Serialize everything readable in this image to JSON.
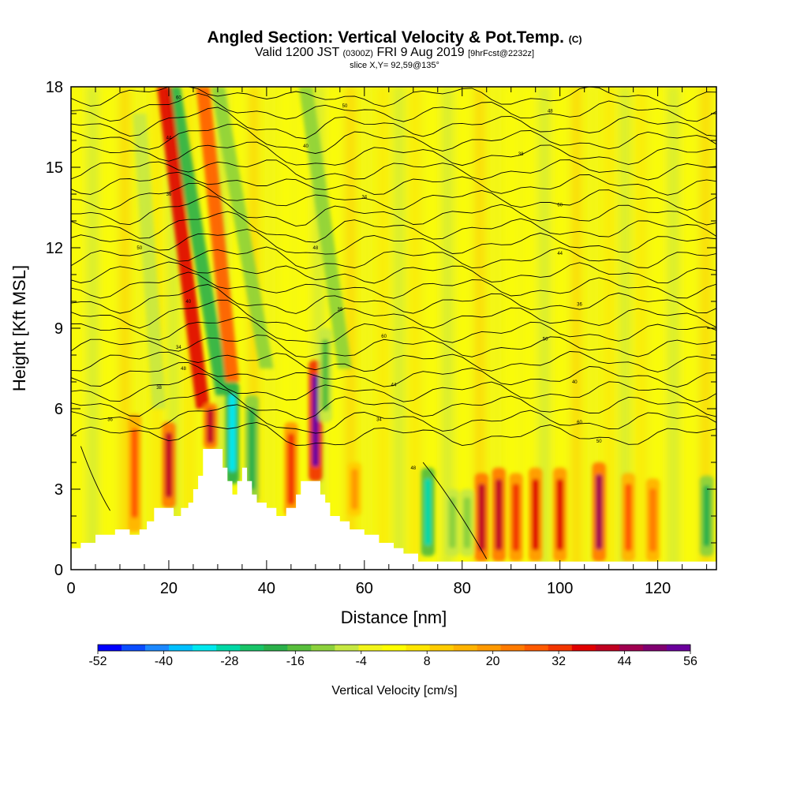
{
  "header": {
    "title_main": "Angled Section: Vertical Velocity & Pot.Temp.",
    "title_unit": "(C)",
    "valid_a": "Valid 1200 JST",
    "valid_b": "(0300Z)",
    "valid_c": "FRI 9 Aug 2019",
    "valid_d": "[9hrFcst@2232z]",
    "slice": "slice X,Y= 92,59@135°"
  },
  "chart_data": {
    "type": "heatmap",
    "title": "Angled Section: Vertical Velocity & Pot.Temp. (C)",
    "xlabel": "Distance [nm]",
    "ylabel": "Height [Kft MSL]",
    "xlim": [
      0,
      132
    ],
    "ylim": [
      0,
      18
    ],
    "x_ticks": [
      "0",
      "20",
      "40",
      "60",
      "80",
      "100",
      "120"
    ],
    "y_ticks": [
      "0",
      "3",
      "6",
      "9",
      "12",
      "15",
      "18"
    ],
    "colorbar": {
      "label": "Vertical Velocity [cm/s]",
      "tick_labels": [
        "-52",
        "-40",
        "-28",
        "-16",
        "-4",
        "8",
        "20",
        "32",
        "44",
        "56"
      ],
      "colors": [
        "#0000ff",
        "#0a4cff",
        "#1c88ff",
        "#00c0ff",
        "#00e8ee",
        "#00d8a6",
        "#18c468",
        "#2ab04a",
        "#58be3c",
        "#8cd13c",
        "#c6e842",
        "#f2f51a",
        "#ffff00",
        "#ffe600",
        "#ffcc00",
        "#ffb300",
        "#ff9900",
        "#ff7b00",
        "#ff5a00",
        "#f23600",
        "#e00000",
        "#c00020",
        "#a00050",
        "#800070",
        "#6a009c"
      ]
    },
    "updrafts": [
      {
        "x": 13,
        "z0": 1.4,
        "z1": 5.8,
        "w": 28
      },
      {
        "x": 20,
        "z0": 2.3,
        "z1": 5.5,
        "w": 40
      },
      {
        "x": 28.5,
        "z0": 4.5,
        "z1": 6.2,
        "w": 40
      },
      {
        "x": 45,
        "z0": 2.0,
        "z1": 5.5,
        "w": 32
      },
      {
        "x": 50,
        "z0": 3.3,
        "z1": 7.8,
        "w": 56
      },
      {
        "x": 58,
        "z0": 2.0,
        "z1": 4.0,
        "w": 18
      },
      {
        "x": 84,
        "z0": 0.3,
        "z1": 3.6,
        "w": 40
      },
      {
        "x": 87.5,
        "z0": 0.3,
        "z1": 3.8,
        "w": 40
      },
      {
        "x": 91,
        "z0": 0.3,
        "z1": 3.6,
        "w": 32
      },
      {
        "x": 95,
        "z0": 0.3,
        "z1": 3.8,
        "w": 36
      },
      {
        "x": 100,
        "z0": 0.3,
        "z1": 3.8,
        "w": 36
      },
      {
        "x": 108,
        "z0": 0.3,
        "z1": 4.0,
        "w": 44
      },
      {
        "x": 114,
        "z0": 0.3,
        "z1": 3.6,
        "w": 28
      },
      {
        "x": 119,
        "z0": 0.3,
        "z1": 3.4,
        "w": 24
      }
    ],
    "downdrafts": [
      {
        "x": 33,
        "z0": 3.2,
        "z1": 7.0,
        "w": -32
      },
      {
        "x": 37,
        "z0": 2.5,
        "z1": 6.5,
        "w": -20
      },
      {
        "x": 52,
        "z0": 5.5,
        "z1": 9.0,
        "w": -16
      },
      {
        "x": 73,
        "z0": 0.5,
        "z1": 3.8,
        "w": -28
      },
      {
        "x": 78,
        "z0": 0.5,
        "z1": 3.0,
        "w": -12
      },
      {
        "x": 81,
        "z0": 0.5,
        "z1": 3.0,
        "w": -12
      },
      {
        "x": 130,
        "z0": 0.5,
        "z1": 3.5,
        "w": -20
      }
    ],
    "slanted_bands": [
      {
        "x_top": 21,
        "x_bottom": 31,
        "z0": 6.5,
        "z1": 18,
        "w": -20
      },
      {
        "x_top": 19,
        "x_bottom": 27,
        "z0": 6.0,
        "z1": 18,
        "w": 36
      },
      {
        "x_top": 27,
        "x_bottom": 33,
        "z0": 7.0,
        "z1": 18,
        "w": 30
      },
      {
        "x_top": 30,
        "x_bottom": 40,
        "z0": 7.5,
        "z1": 18,
        "w": -12
      },
      {
        "x_top": 48,
        "x_bottom": 56,
        "z0": 7.5,
        "z1": 18,
        "w": -12
      },
      {
        "x_top": 14,
        "x_bottom": 18,
        "z0": 6.0,
        "z1": 17,
        "w": -8
      }
    ],
    "terrain_kft": [
      [
        0,
        0.8
      ],
      [
        2,
        0.8
      ],
      [
        2,
        1.0
      ],
      [
        5,
        1.0
      ],
      [
        5,
        1.3
      ],
      [
        9,
        1.3
      ],
      [
        9,
        1.5
      ],
      [
        12,
        1.5
      ],
      [
        12,
        1.3
      ],
      [
        14,
        1.3
      ],
      [
        14,
        1.5
      ],
      [
        15.5,
        1.5
      ],
      [
        15.5,
        1.8
      ],
      [
        17,
        1.8
      ],
      [
        17,
        2.3
      ],
      [
        21,
        2.3
      ],
      [
        21,
        2.0
      ],
      [
        22.5,
        2.0
      ],
      [
        22.5,
        2.3
      ],
      [
        24,
        2.3
      ],
      [
        24,
        2.5
      ],
      [
        25,
        2.5
      ],
      [
        25,
        3.0
      ],
      [
        26,
        3.0
      ],
      [
        26,
        3.5
      ],
      [
        27,
        3.5
      ],
      [
        27,
        4.5
      ],
      [
        31,
        4.5
      ],
      [
        31,
        3.8
      ],
      [
        32,
        3.8
      ],
      [
        32,
        3.3
      ],
      [
        33,
        3.3
      ],
      [
        33,
        2.8
      ],
      [
        34,
        2.8
      ],
      [
        34,
        3.3
      ],
      [
        35,
        3.3
      ],
      [
        35,
        3.8
      ],
      [
        36,
        3.8
      ],
      [
        36,
        3.3
      ],
      [
        37,
        3.3
      ],
      [
        37,
        2.8
      ],
      [
        38,
        2.8
      ],
      [
        38,
        2.5
      ],
      [
        40,
        2.5
      ],
      [
        40,
        2.3
      ],
      [
        42,
        2.3
      ],
      [
        42,
        2.0
      ],
      [
        44,
        2.0
      ],
      [
        44,
        2.3
      ],
      [
        46,
        2.3
      ],
      [
        46,
        2.8
      ],
      [
        47,
        2.8
      ],
      [
        47,
        3.3
      ],
      [
        51,
        3.3
      ],
      [
        51,
        2.8
      ],
      [
        52,
        2.8
      ],
      [
        52,
        2.5
      ],
      [
        53,
        2.5
      ],
      [
        53,
        2.0
      ],
      [
        55,
        2.0
      ],
      [
        55,
        1.8
      ],
      [
        57,
        1.8
      ],
      [
        57,
        1.5
      ],
      [
        60,
        1.5
      ],
      [
        60,
        1.3
      ],
      [
        63,
        1.3
      ],
      [
        63,
        1.0
      ],
      [
        66,
        1.0
      ],
      [
        66,
        0.8
      ],
      [
        68,
        0.8
      ],
      [
        68,
        0.6
      ],
      [
        71,
        0.6
      ],
      [
        71,
        0.3
      ],
      [
        132,
        0.3
      ]
    ],
    "isentrope_labels": [
      "60",
      "50",
      "48",
      "44",
      "40",
      "38",
      "36",
      "34"
    ]
  },
  "colors": {
    "background": "#ffffff",
    "base_field": "#f4f714",
    "terrain": "#ffffff",
    "contour": "#000000"
  }
}
